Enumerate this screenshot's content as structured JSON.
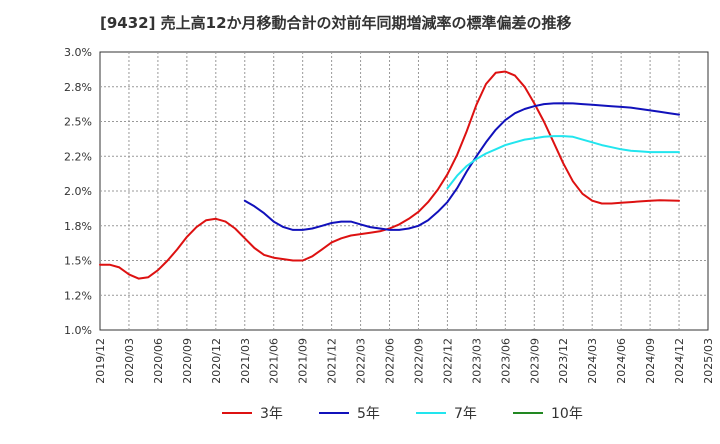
{
  "chart_data": {
    "type": "line",
    "title": "[9432]  売上高12か月移動合計の対前年同期増減率の標準偏差の推移",
    "xlabel": "",
    "ylabel": "",
    "ylim": [
      1.0,
      3.0
    ],
    "y_ticks": [
      "1.0%",
      "1.2%",
      "1.5%",
      "1.8%",
      "2.0%",
      "2.2%",
      "2.5%",
      "2.8%",
      "3.0%"
    ],
    "x_ticks": [
      "2019/12",
      "2020/03",
      "2020/06",
      "2020/09",
      "2020/12",
      "2021/03",
      "2021/06",
      "2021/09",
      "2021/12",
      "2022/03",
      "2022/06",
      "2022/09",
      "2022/12",
      "2023/03",
      "2023/06",
      "2023/09",
      "2023/12",
      "2024/03",
      "2024/06",
      "2024/09",
      "2024/12",
      "2025/03"
    ],
    "grid": true,
    "legend_position": "bottom",
    "series": [
      {
        "name": "3年",
        "color": "#dd1111",
        "x": [
          "2019/12",
          "2020/01",
          "2020/02",
          "2020/03",
          "2020/04",
          "2020/05",
          "2020/06",
          "2020/07",
          "2020/08",
          "2020/09",
          "2020/10",
          "2020/11",
          "2020/12",
          "2021/01",
          "2021/02",
          "2021/03",
          "2021/04",
          "2021/05",
          "2021/06",
          "2021/07",
          "2021/08",
          "2021/09",
          "2021/10",
          "2021/11",
          "2021/12",
          "2022/01",
          "2022/02",
          "2022/03",
          "2022/04",
          "2022/05",
          "2022/06",
          "2022/07",
          "2022/08",
          "2022/09",
          "2022/10",
          "2022/11",
          "2022/12",
          "2023/01",
          "2023/02",
          "2023/03",
          "2023/04",
          "2023/05",
          "2023/06",
          "2023/07",
          "2023/08",
          "2023/09",
          "2023/10",
          "2023/11",
          "2023/12",
          "2024/01",
          "2024/02",
          "2024/03",
          "2024/04",
          "2024/05",
          "2024/06",
          "2024/07",
          "2024/08",
          "2024/09",
          "2024/10",
          "2024/11",
          "2024/12"
        ],
        "values": [
          1.47,
          1.47,
          1.45,
          1.4,
          1.37,
          1.38,
          1.43,
          1.5,
          1.58,
          1.67,
          1.74,
          1.79,
          1.8,
          1.78,
          1.73,
          1.66,
          1.59,
          1.54,
          1.52,
          1.51,
          1.5,
          1.5,
          1.53,
          1.58,
          1.63,
          1.66,
          1.68,
          1.69,
          1.7,
          1.71,
          1.73,
          1.76,
          1.8,
          1.85,
          1.92,
          2.01,
          2.12,
          2.26,
          2.43,
          2.62,
          2.77,
          2.85,
          2.86,
          2.83,
          2.75,
          2.63,
          2.5,
          2.35,
          2.2,
          2.07,
          1.98,
          1.93,
          1.91,
          1.91,
          1.915,
          1.92,
          1.925,
          1.93,
          1.933,
          1.932,
          1.93
        ]
      },
      {
        "name": "5年",
        "color": "#1111bb",
        "x": [
          "2021/03",
          "2021/04",
          "2021/05",
          "2021/06",
          "2021/07",
          "2021/08",
          "2021/09",
          "2021/10",
          "2021/11",
          "2021/12",
          "2022/01",
          "2022/02",
          "2022/03",
          "2022/04",
          "2022/05",
          "2022/06",
          "2022/07",
          "2022/08",
          "2022/09",
          "2022/10",
          "2022/11",
          "2022/12",
          "2023/01",
          "2023/02",
          "2023/03",
          "2023/04",
          "2023/05",
          "2023/06",
          "2023/07",
          "2023/08",
          "2023/09",
          "2023/10",
          "2023/11",
          "2023/12",
          "2024/01",
          "2024/02",
          "2024/03",
          "2024/04",
          "2024/05",
          "2024/06",
          "2024/07",
          "2024/08",
          "2024/09",
          "2024/10",
          "2024/11",
          "2024/12"
        ],
        "values": [
          1.93,
          1.89,
          1.84,
          1.78,
          1.74,
          1.72,
          1.72,
          1.73,
          1.75,
          1.77,
          1.78,
          1.78,
          1.76,
          1.74,
          1.73,
          1.72,
          1.72,
          1.73,
          1.75,
          1.79,
          1.85,
          1.92,
          2.02,
          2.14,
          2.25,
          2.35,
          2.44,
          2.51,
          2.56,
          2.59,
          2.61,
          2.625,
          2.63,
          2.632,
          2.63,
          2.625,
          2.62,
          2.615,
          2.61,
          2.605,
          2.6,
          2.59,
          2.58,
          2.57,
          2.56,
          2.55
        ]
      },
      {
        "name": "7年",
        "color": "#22e5ee",
        "x": [
          "2022/12",
          "2023/01",
          "2023/02",
          "2023/03",
          "2023/04",
          "2023/05",
          "2023/06",
          "2023/07",
          "2023/08",
          "2023/09",
          "2023/10",
          "2023/11",
          "2023/12",
          "2024/01",
          "2024/02",
          "2024/03",
          "2024/04",
          "2024/05",
          "2024/06",
          "2024/07",
          "2024/08",
          "2024/09",
          "2024/10",
          "2024/11",
          "2024/12"
        ],
        "values": [
          2.02,
          2.11,
          2.18,
          2.23,
          2.27,
          2.3,
          2.33,
          2.35,
          2.37,
          2.38,
          2.39,
          2.395,
          2.395,
          2.39,
          2.37,
          2.35,
          2.33,
          2.315,
          2.3,
          2.29,
          2.285,
          2.28,
          2.28,
          2.28,
          2.28
        ]
      },
      {
        "name": "10年",
        "color": "#228822",
        "x": [],
        "values": []
      }
    ]
  }
}
